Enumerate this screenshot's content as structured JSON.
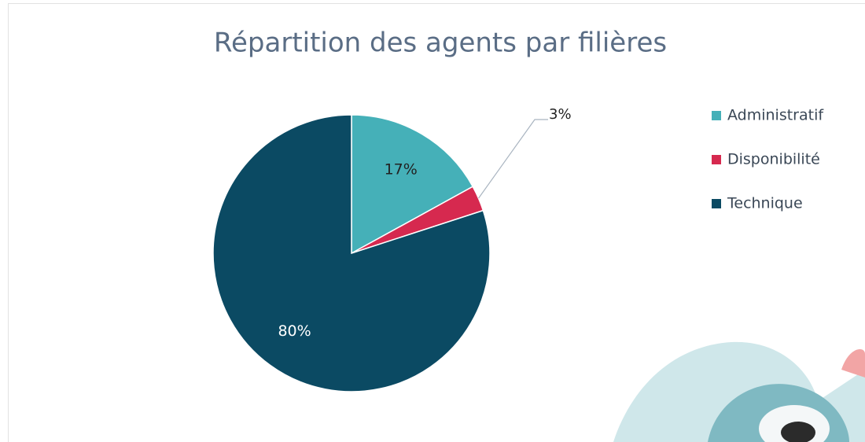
{
  "chart_data": {
    "type": "pie",
    "title": "Répartition des agents par filières",
    "categories": [
      "Administratif",
      "Disponibilité",
      "Technique"
    ],
    "values": [
      17,
      3,
      80
    ],
    "value_labels": [
      "17%",
      "3%",
      "80%"
    ],
    "colors": [
      "#45b0b8",
      "#d6294f",
      "#0b4a63"
    ],
    "legend": "right"
  }
}
